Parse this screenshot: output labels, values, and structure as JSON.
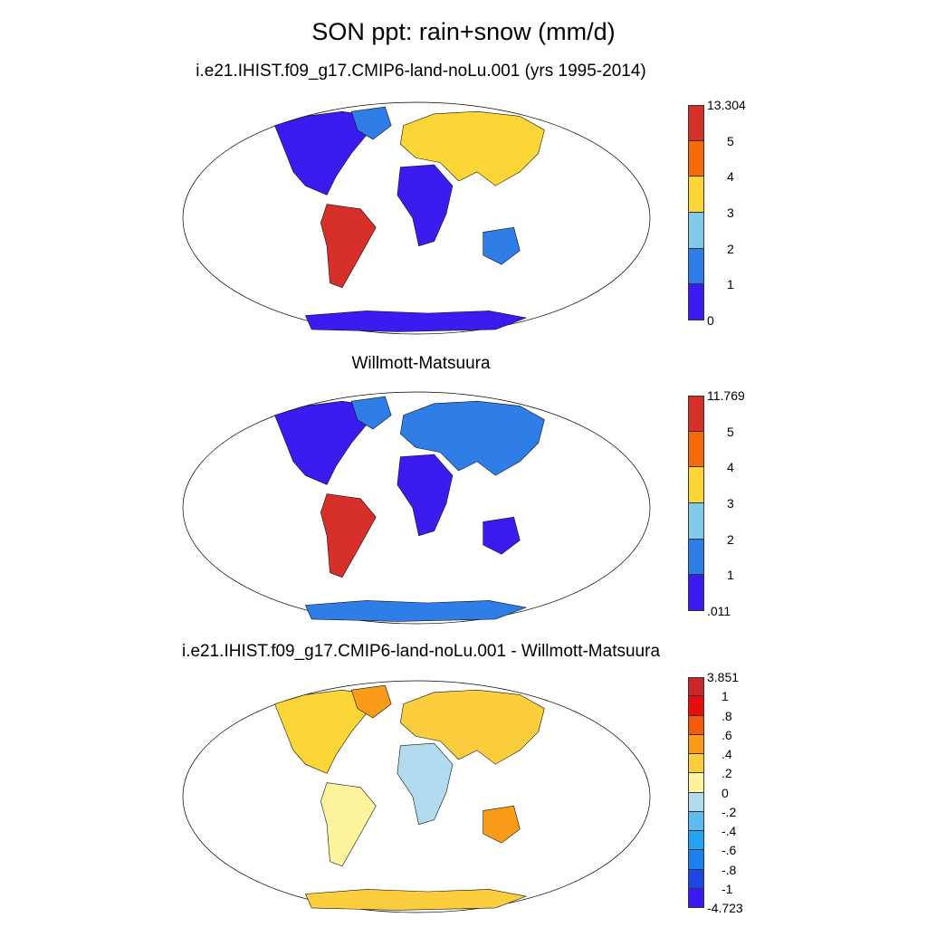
{
  "figure": {
    "title": "SON ppt: rain+snow (mm/d)"
  },
  "chart_data": [
    {
      "type": "heatmap",
      "title": "i.e21.IHIST.f09_g17.CMIP6-land-noLu.001 (yrs 1995-2014)",
      "projection": "Robinson world map",
      "colorbar": {
        "labels": [
          "13.304",
          "5",
          "4",
          "3",
          "2",
          "1",
          "0"
        ],
        "colors": [
          "#d7302a",
          "#f76a0a",
          "#fcd537",
          "#83c9ea",
          "#2f7de6",
          "#3a1bf0"
        ]
      },
      "values_range": [
        0,
        13.304
      ]
    },
    {
      "type": "heatmap",
      "title": "Willmott-Matsuura",
      "projection": "Robinson world map",
      "colorbar": {
        "labels": [
          "11.769",
          "5",
          "4",
          "3",
          "2",
          "1",
          ".011"
        ],
        "colors": [
          "#d7302a",
          "#f76a0a",
          "#fcd537",
          "#83c9ea",
          "#2f7de6",
          "#3a1bf0"
        ]
      },
      "values_range": [
        0.011,
        11.769
      ]
    },
    {
      "type": "heatmap",
      "title": "i.e21.IHIST.f09_g17.CMIP6-land-noLu.001 - Willmott-Matsuura",
      "projection": "Robinson world map",
      "colorbar": {
        "labels": [
          "3.851",
          "1",
          ".8",
          ".6",
          ".4",
          ".2",
          "0",
          "-.2",
          "-.4",
          "-.6",
          "-.8",
          "-1",
          "-4.723"
        ],
        "colors": [
          "#c8282c",
          "#e60d0d",
          "#f45a0a",
          "#fb9b1a",
          "#fccd3c",
          "#fff49e",
          "#b2dbf0",
          "#5cbbef",
          "#24a4f2",
          "#1e7ff0",
          "#2046e6",
          "#3a1bf0"
        ]
      },
      "values_range": [
        -4.723,
        3.851
      ]
    }
  ]
}
